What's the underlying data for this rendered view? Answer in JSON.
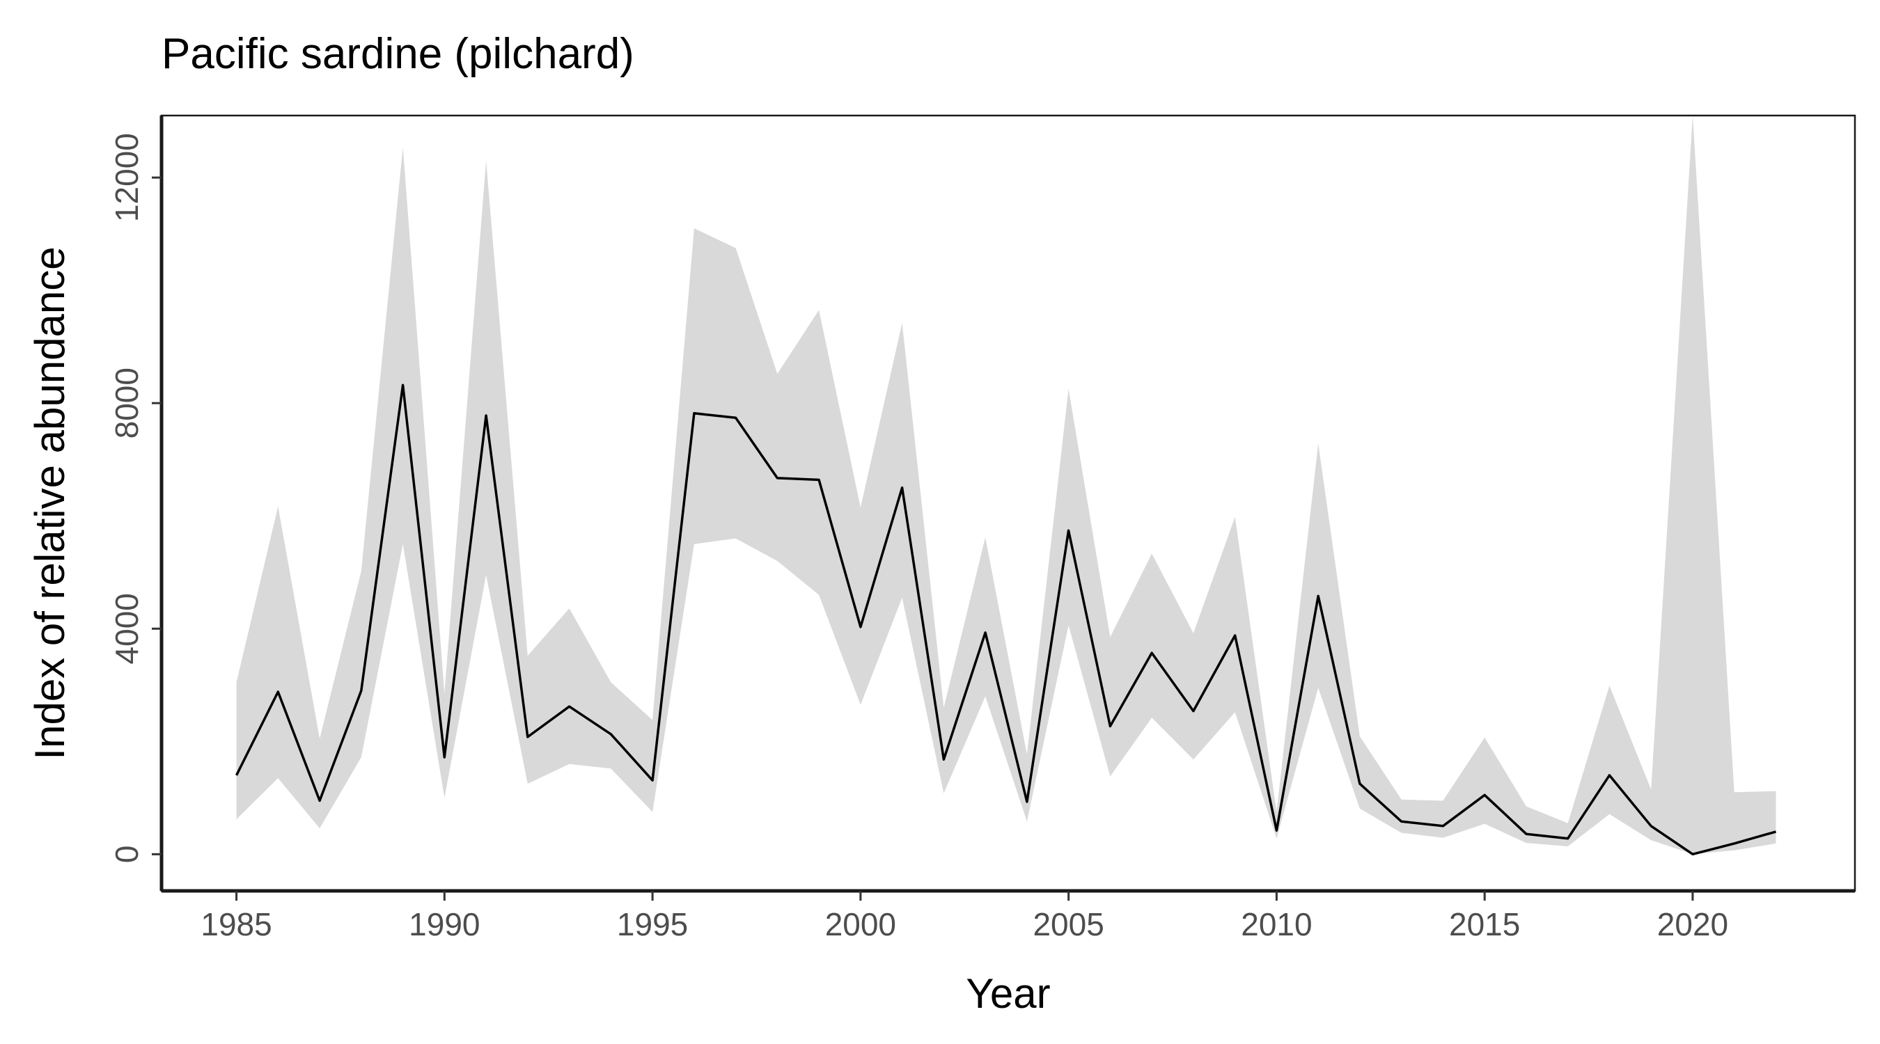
{
  "chart_data": {
    "type": "line",
    "title": "Pacific sardine (pilchard)",
    "xlabel": "Year",
    "ylabel": "Index of relative abundance",
    "xlim": [
      1983.2,
      2023.9
    ],
    "ylim": [
      -650,
      13100
    ],
    "x_ticks": [
      1985,
      1990,
      1995,
      2000,
      2005,
      2010,
      2015,
      2020
    ],
    "y_ticks": [
      0,
      4000,
      8000,
      12000
    ],
    "grid": false,
    "legend": "none",
    "colors": {
      "line": "#000000",
      "ribbon": "#d9d9d9"
    },
    "x": [
      1985,
      1986,
      1987,
      1988,
      1989,
      1990,
      1991,
      1992,
      1993,
      1994,
      1995,
      1996,
      1997,
      1998,
      1999,
      2000,
      2001,
      2002,
      2003,
      2004,
      2005,
      2006,
      2007,
      2008,
      2009,
      2010,
      2011,
      2012,
      2013,
      2014,
      2015,
      2016,
      2017,
      2018,
      2019,
      2020,
      2021,
      2022
    ],
    "series": [
      {
        "values": [
          1400,
          2880,
          950,
          2900,
          8320,
          1720,
          7780,
          2080,
          2620,
          2130,
          1310,
          7820,
          7740,
          6670,
          6640,
          4030,
          6500,
          1680,
          3930,
          930,
          5740,
          2270,
          3570,
          2540,
          3880,
          420,
          4580,
          1250,
          580,
          500,
          1050,
          360,
          280,
          1400,
          500,
          0,
          190,
          400
        ],
        "lower": [
          620,
          1350,
          460,
          1720,
          5500,
          1000,
          4950,
          1250,
          1600,
          1520,
          750,
          5500,
          5600,
          5200,
          4600,
          2650,
          4550,
          1080,
          2800,
          580,
          4060,
          1380,
          2420,
          1680,
          2520,
          280,
          2950,
          810,
          380,
          290,
          540,
          200,
          140,
          710,
          250,
          0,
          70,
          190
        ],
        "upper": [
          3050,
          6170,
          2050,
          5020,
          12540,
          2850,
          12300,
          3520,
          4360,
          3050,
          2380,
          11100,
          10750,
          8520,
          9650,
          6150,
          9420,
          2600,
          5620,
          1770,
          8250,
          3850,
          5330,
          3920,
          5980,
          750,
          7280,
          2090,
          970,
          950,
          2070,
          850,
          550,
          2990,
          1150,
          13100,
          1100,
          1120
        ]
      }
    ]
  }
}
